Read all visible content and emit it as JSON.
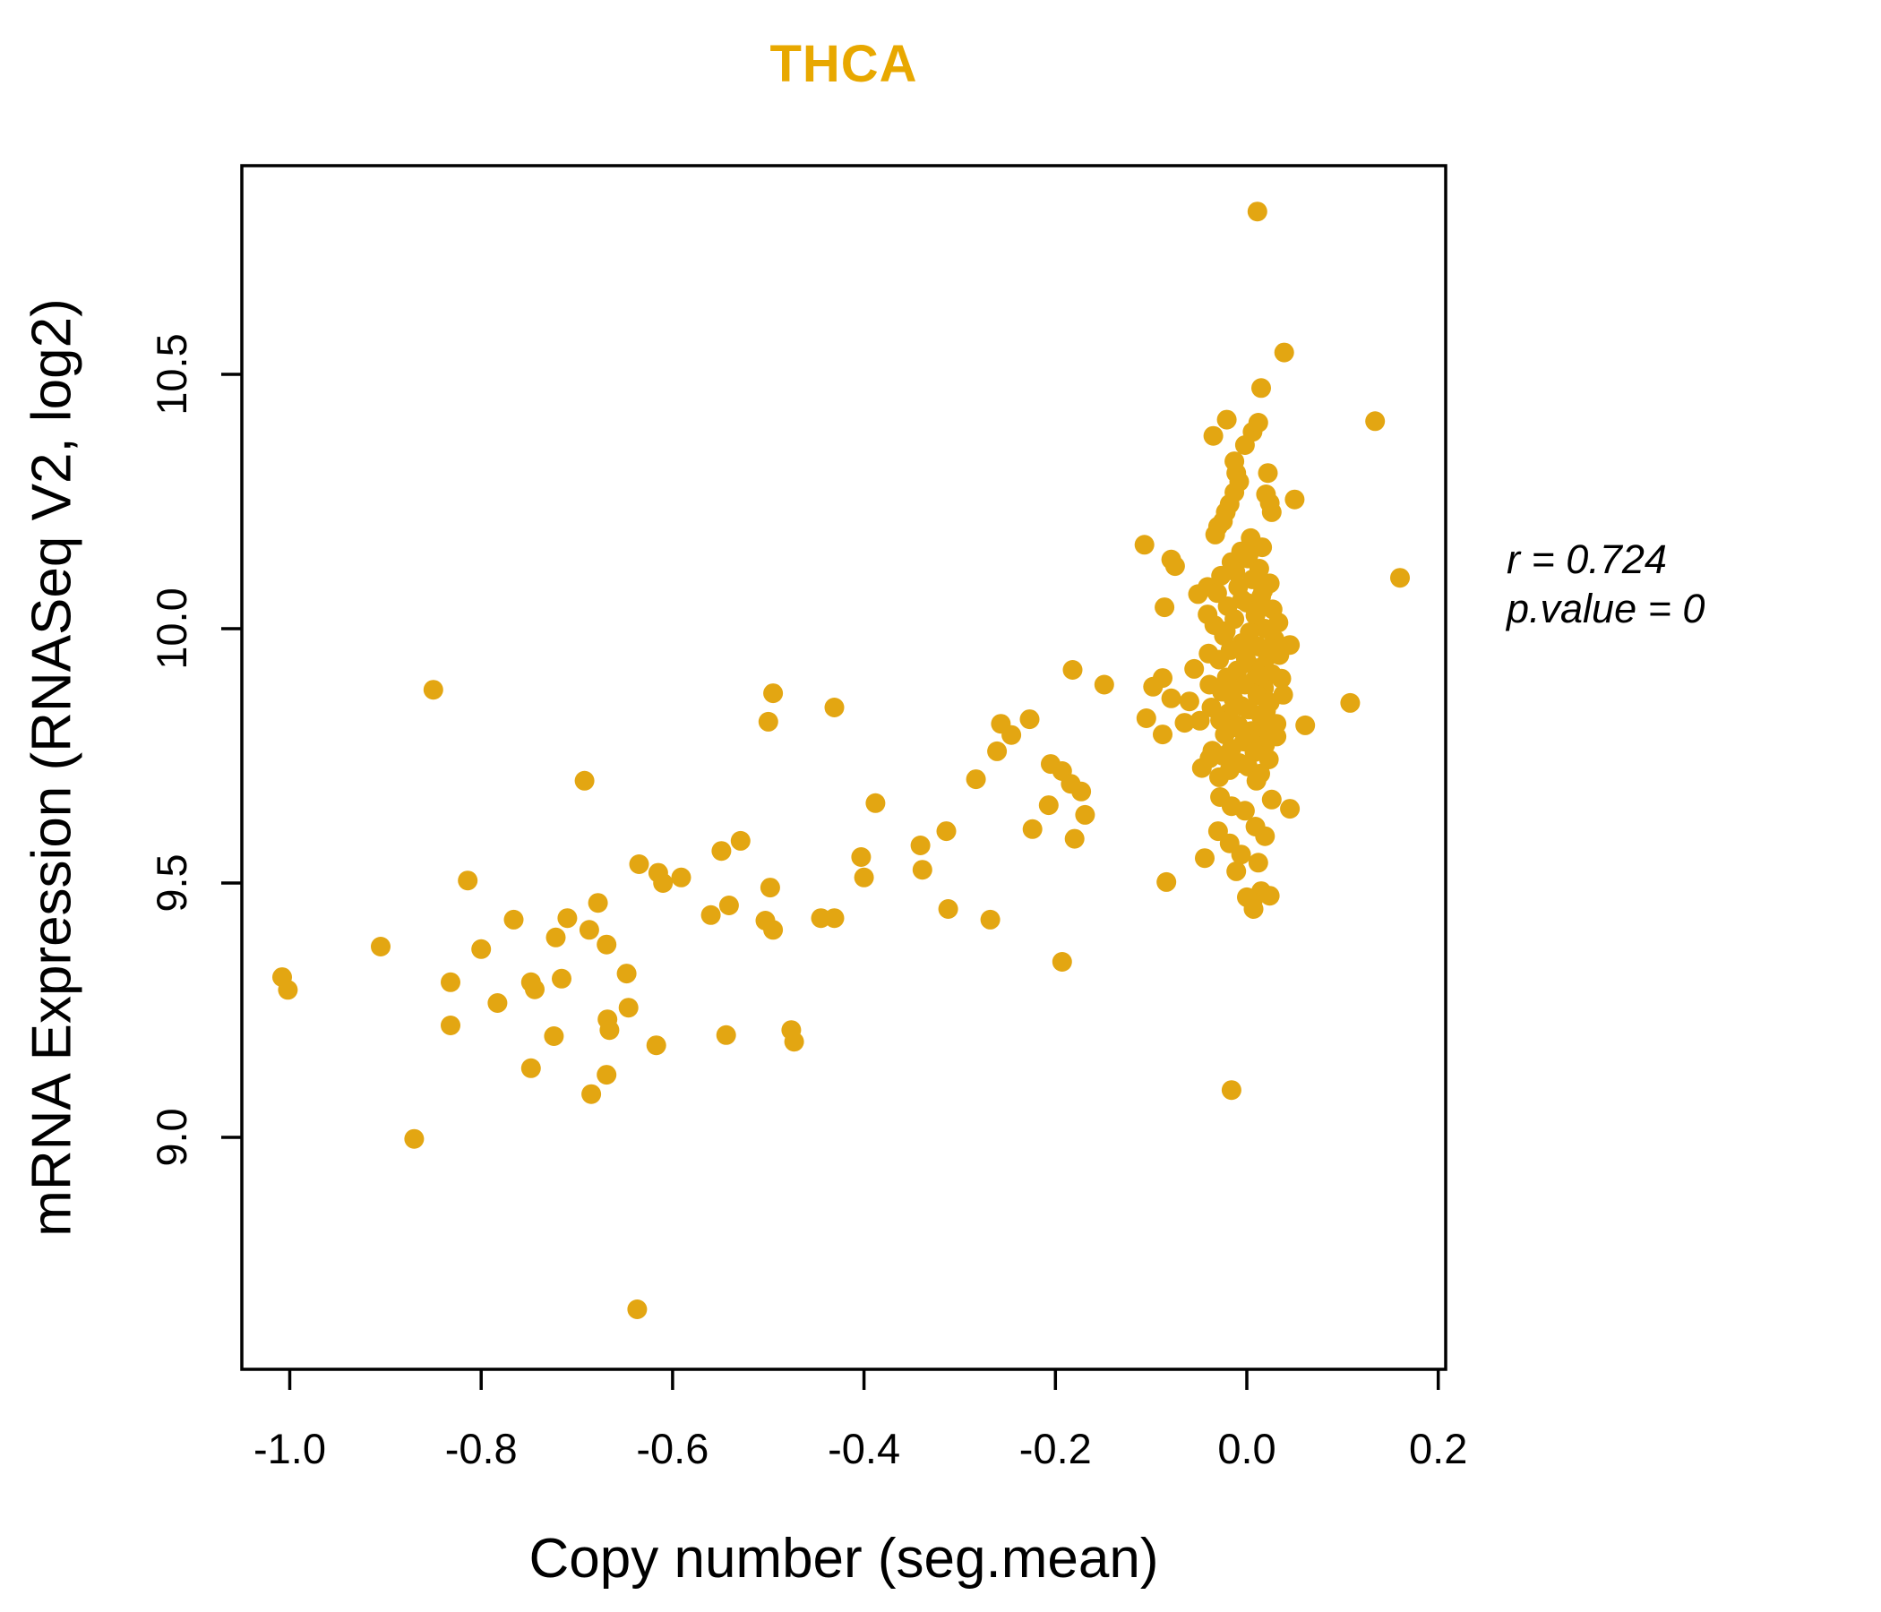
{
  "title": {
    "text": "THCA",
    "color": "#E8A800"
  },
  "annotation": {
    "line1": "r = 0.724",
    "line2": "p.value = 0"
  },
  "axes": {
    "x": {
      "label": "Copy number (seg.mean)",
      "tick_values": [
        -1.0,
        -0.8,
        -0.6,
        -0.4,
        -0.2,
        0.0,
        0.2
      ],
      "tick_labels": [
        "-1.0",
        "-0.8",
        "-0.6",
        "-0.4",
        "-0.2",
        "0.0",
        "0.2"
      ]
    },
    "y": {
      "label": "mRNA Expression (RNASeq V2, log2)",
      "tick_values": [
        9.0,
        9.5,
        10.0,
        10.5
      ],
      "tick_labels": [
        "9.0",
        "9.5",
        "10.0",
        "10.5"
      ]
    }
  },
  "chart_data": {
    "type": "scatter",
    "title": "THCA",
    "xlabel": "Copy number (seg.mean)",
    "ylabel": "mRNA Expression (RNASeq V2, log2)",
    "xlim": [
      -1.05,
      0.208
    ],
    "ylim": [
      8.545,
      10.91
    ],
    "grid": false,
    "point_color": "#E3A612",
    "title_color": "#E8A800",
    "legend": "none",
    "correlation_r": 0.724,
    "p_value": 0,
    "series": [
      {
        "name": "THCA samples",
        "points": [
          [
            -1.008,
            9.315
          ],
          [
            -1.002,
            9.29
          ],
          [
            -0.905,
            9.375
          ],
          [
            -0.87,
            8.997
          ],
          [
            -0.85,
            9.88
          ],
          [
            -0.832,
            9.305
          ],
          [
            -0.832,
            9.22
          ],
          [
            -0.814,
            9.505
          ],
          [
            -0.8,
            9.37
          ],
          [
            -0.783,
            9.264
          ],
          [
            -0.766,
            9.428
          ],
          [
            -0.748,
            9.305
          ],
          [
            -0.744,
            9.291
          ],
          [
            -0.748,
            9.136
          ],
          [
            -0.722,
            9.393
          ],
          [
            -0.716,
            9.312
          ],
          [
            -0.724,
            9.199
          ],
          [
            -0.71,
            9.431
          ],
          [
            -0.692,
            9.701
          ],
          [
            -0.687,
            9.408
          ],
          [
            -0.678,
            9.461
          ],
          [
            -0.669,
            9.379
          ],
          [
            -0.668,
            9.232
          ],
          [
            -0.666,
            9.211
          ],
          [
            -0.669,
            9.123
          ],
          [
            -0.685,
            9.085
          ],
          [
            -0.648,
            9.322
          ],
          [
            -0.646,
            9.255
          ],
          [
            -0.637,
            8.662
          ],
          [
            -0.635,
            9.537
          ],
          [
            -0.617,
            9.181
          ],
          [
            -0.615,
            9.52
          ],
          [
            -0.591,
            9.511
          ],
          [
            -0.61,
            9.5
          ],
          [
            -0.549,
            9.563
          ],
          [
            -0.544,
            9.201
          ],
          [
            -0.56,
            9.437
          ],
          [
            -0.541,
            9.456
          ],
          [
            -0.529,
            9.583
          ],
          [
            -0.503,
            9.426
          ],
          [
            -0.498,
            9.491
          ],
          [
            -0.495,
            9.873
          ],
          [
            -0.5,
            9.817
          ],
          [
            -0.495,
            9.408
          ],
          [
            -0.476,
            9.211
          ],
          [
            -0.473,
            9.188
          ],
          [
            -0.445,
            9.431
          ],
          [
            -0.431,
            9.431
          ],
          [
            -0.431,
            9.845
          ],
          [
            -0.403,
            9.551
          ],
          [
            -0.4,
            9.511
          ],
          [
            -0.388,
            9.657
          ],
          [
            -0.341,
            9.574
          ],
          [
            -0.339,
            9.526
          ],
          [
            -0.314,
            9.602
          ],
          [
            -0.312,
            9.449
          ],
          [
            -0.283,
            9.704
          ],
          [
            -0.268,
            9.428
          ],
          [
            -0.257,
            9.813
          ],
          [
            -0.246,
            9.791
          ],
          [
            -0.261,
            9.759
          ],
          [
            -0.227,
            9.822
          ],
          [
            -0.205,
            9.734
          ],
          [
            -0.193,
            9.72
          ],
          [
            -0.184,
            9.695
          ],
          [
            -0.173,
            9.68
          ],
          [
            -0.207,
            9.653
          ],
          [
            -0.224,
            9.606
          ],
          [
            -0.169,
            9.634
          ],
          [
            -0.18,
            9.587
          ],
          [
            -0.193,
            9.345
          ],
          [
            -0.182,
            9.919
          ],
          [
            -0.149,
            9.89
          ],
          [
            -0.107,
            10.165
          ],
          [
            -0.079,
            10.136
          ],
          [
            -0.086,
            10.042
          ],
          [
            -0.075,
            10.123
          ],
          [
            -0.051,
            10.068
          ],
          [
            -0.041,
            10.082
          ],
          [
            -0.088,
            9.903
          ],
          [
            -0.098,
            9.886
          ],
          [
            -0.079,
            9.863
          ],
          [
            -0.06,
            9.857
          ],
          [
            -0.105,
            9.824
          ],
          [
            -0.088,
            9.792
          ],
          [
            -0.065,
            9.815
          ],
          [
            -0.049,
            9.819
          ],
          [
            -0.055,
            9.921
          ],
          [
            -0.084,
            9.502
          ],
          [
            -0.044,
            9.549
          ],
          [
            -0.021,
            10.411
          ],
          [
            -0.035,
            10.379
          ],
          [
            0.006,
            10.387
          ],
          [
            -0.002,
            10.361
          ],
          [
            0.012,
            10.405
          ],
          [
            -0.013,
            10.329
          ],
          [
            -0.011,
            10.306
          ],
          [
            -0.008,
            10.289
          ],
          [
            -0.013,
            10.268
          ],
          [
            0.022,
            10.306
          ],
          [
            -0.018,
            10.245
          ],
          [
            -0.022,
            10.229
          ],
          [
            -0.025,
            10.211
          ],
          [
            0.02,
            10.264
          ],
          [
            0.024,
            10.247
          ],
          [
            0.026,
            10.229
          ],
          [
            0.05,
            10.254
          ],
          [
            -0.03,
            10.201
          ],
          [
            -0.033,
            10.185
          ],
          [
            0.004,
            10.178
          ],
          [
            0.016,
            10.16
          ],
          [
            -0.006,
            10.152
          ],
          [
            0.001,
            10.138
          ],
          [
            -0.016,
            10.131
          ],
          [
            0.013,
            10.118
          ],
          [
            -0.027,
            10.104
          ],
          [
            0.006,
            10.097
          ],
          [
            0.024,
            10.089
          ],
          [
            -0.009,
            10.082
          ],
          [
            -0.031,
            10.07
          ],
          [
            0.015,
            10.063
          ],
          [
            0.0,
            10.051
          ],
          [
            -0.02,
            10.044
          ],
          [
            0.027,
            10.038
          ],
          [
            0.009,
            10.026
          ],
          [
            -0.013,
            10.019
          ],
          [
            -0.034,
            10.007
          ],
          [
            0.019,
            10.0
          ],
          [
            0.003,
            9.993
          ],
          [
            -0.024,
            9.986
          ],
          [
            0.029,
            9.979
          ],
          [
            -0.005,
            9.972
          ],
          [
            0.012,
            9.965
          ],
          [
            -0.017,
            9.958
          ],
          [
            0.022,
            9.946
          ],
          [
            -0.029,
            9.939
          ],
          [
            0.001,
            9.932
          ],
          [
            0.016,
            9.925
          ],
          [
            -0.01,
            9.918
          ],
          [
            0.026,
            9.911
          ],
          [
            -0.021,
            9.904
          ],
          [
            0.007,
            9.897
          ],
          [
            -0.002,
            9.89
          ],
          [
            0.018,
            9.883
          ],
          [
            -0.026,
            9.876
          ],
          [
            0.011,
            9.869
          ],
          [
            -0.014,
            9.862
          ],
          [
            0.024,
            9.855
          ],
          [
            -0.006,
            9.848
          ],
          [
            0.002,
            9.841
          ],
          [
            -0.019,
            9.834
          ],
          [
            0.015,
            9.827
          ],
          [
            -0.028,
            9.82
          ],
          [
            0.021,
            9.813
          ],
          [
            -0.011,
            9.806
          ],
          [
            0.005,
            9.799
          ],
          [
            -0.023,
            9.792
          ],
          [
            0.013,
            9.785
          ],
          [
            -0.003,
            9.778
          ],
          [
            0.019,
            9.771
          ],
          [
            -0.016,
            9.764
          ],
          [
            0.008,
            9.757
          ],
          [
            -0.025,
            9.75
          ],
          [
            0.023,
            9.743
          ],
          [
            -0.008,
            9.736
          ],
          [
            0.001,
            9.729
          ],
          [
            -0.018,
            9.722
          ],
          [
            0.014,
            9.715
          ],
          [
            -0.029,
            9.708
          ],
          [
            0.01,
            9.701
          ],
          [
            0.033,
            10.012
          ],
          [
            -0.04,
            9.951
          ],
          [
            0.036,
            9.902
          ],
          [
            -0.037,
            9.845
          ],
          [
            0.031,
            9.788
          ],
          [
            -0.036,
            9.76
          ],
          [
            0.034,
            9.948
          ],
          [
            -0.041,
            10.028
          ],
          [
            0.038,
            9.87
          ],
          [
            -0.039,
            9.89
          ],
          [
            0.002,
            10.146
          ],
          [
            -0.012,
            10.112
          ],
          [
            0.017,
            10.075
          ],
          [
            -0.005,
            10.057
          ],
          [
            0.01,
            10.032
          ],
          [
            -0.022,
            9.995
          ],
          [
            0.025,
            9.96
          ],
          [
            -0.001,
            9.941
          ],
          [
            0.014,
            9.908
          ],
          [
            -0.015,
            9.88
          ],
          [
            0.02,
            9.838
          ],
          [
            -0.009,
            9.81
          ],
          [
            0.045,
            9.968
          ],
          [
            -0.039,
            9.745
          ],
          [
            -0.047,
            9.726
          ],
          [
            -0.028,
            9.669
          ],
          [
            -0.016,
            9.651
          ],
          [
            -0.002,
            9.642
          ],
          [
            0.026,
            9.664
          ],
          [
            0.045,
            9.646
          ],
          [
            0.009,
            9.611
          ],
          [
            -0.03,
            9.602
          ],
          [
            -0.018,
            9.578
          ],
          [
            -0.011,
            9.523
          ],
          [
            0.015,
            9.484
          ],
          [
            0.006,
            9.463
          ],
          [
            0.0,
            9.472
          ],
          [
            0.024,
            9.475
          ],
          [
            0.007,
            9.449
          ],
          [
            0.031,
            9.813
          ],
          [
            0.061,
            9.81
          ],
          [
            0.019,
            9.592
          ],
          [
            -0.006,
            9.556
          ],
          [
            0.012,
            9.54
          ],
          [
            0.011,
            10.82
          ],
          [
            0.039,
            10.543
          ],
          [
            0.015,
            10.473
          ],
          [
            0.134,
            10.408
          ],
          [
            0.16,
            10.1
          ],
          [
            0.108,
            9.854
          ],
          [
            -0.016,
            9.093
          ]
        ]
      }
    ]
  }
}
